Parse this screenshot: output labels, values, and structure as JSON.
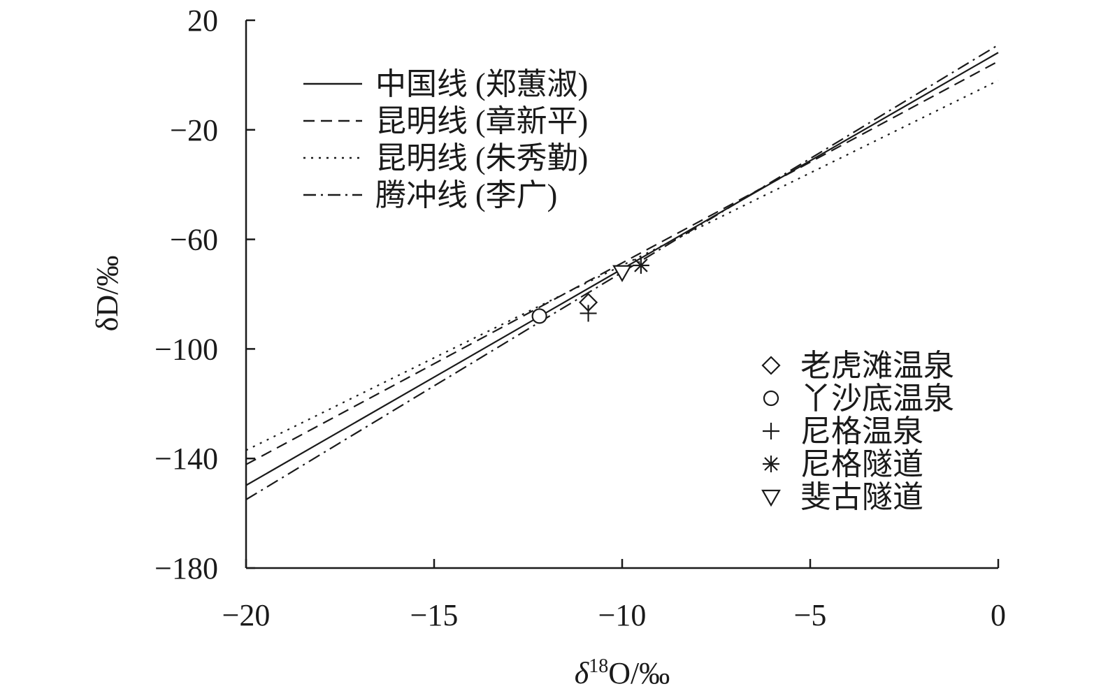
{
  "chart_data": {
    "type": "scatter",
    "title": "",
    "xlabel": {
      "prefix": "δ",
      "superscript": "18",
      "suffix": "O/‰"
    },
    "ylabel": "δD/‰",
    "xlim": [
      -20,
      0
    ],
    "ylim": [
      -180,
      20
    ],
    "x_ticks": [
      -20,
      -15,
      -10,
      -5,
      0
    ],
    "x_tick_labels": [
      "−20",
      "−15",
      "−10",
      "−5",
      "0"
    ],
    "y_ticks": [
      20,
      -20,
      -60,
      -100,
      -140,
      -180
    ],
    "y_tick_labels": [
      "20",
      "−20",
      "−60",
      "−100",
      "−140",
      "−180"
    ],
    "grid": false,
    "lines": [
      {
        "name": "中国线 (郑蕙淑)",
        "style": "solid",
        "slope": 7.9,
        "intercept": 8.2
      },
      {
        "name": "昆明线 (章新平)",
        "style": "dashed",
        "slope": 7.36,
        "intercept": 5.0
      },
      {
        "name": "昆明线 (朱秀勤)",
        "style": "dotted",
        "slope": 6.75,
        "intercept": -2.0
      },
      {
        "name": "腾冲线 (李广)",
        "style": "dashdot",
        "slope": 8.3,
        "intercept": 11.0
      }
    ],
    "series": [
      {
        "name": "老虎滩温泉",
        "marker": "diamond",
        "points": [
          [
            -10.9,
            -83
          ]
        ]
      },
      {
        "name": "丫沙底温泉",
        "marker": "circle",
        "points": [
          [
            -12.2,
            -88
          ]
        ]
      },
      {
        "name": "尼格温泉",
        "marker": "plus",
        "points": [
          [
            -10.9,
            -87
          ]
        ]
      },
      {
        "name": "尼格隧道",
        "marker": "asterisk",
        "points": [
          [
            -9.5,
            -69.5
          ]
        ]
      },
      {
        "name": "斐古隧道",
        "marker": "triangle-down",
        "points": [
          [
            -10.0,
            -72
          ]
        ]
      }
    ],
    "legend_lines_placement": "top-left",
    "legend_markers_placement": "bottom-right"
  }
}
